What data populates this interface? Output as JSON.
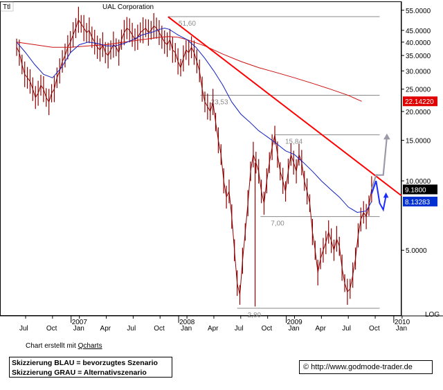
{
  "chart_data": {
    "type": "line",
    "title": "UAL Corporation",
    "scale": "log",
    "scale_label": "LOG",
    "ylim": [
      2.2,
      60
    ],
    "y_ticks": [
      {
        "value": 55,
        "label": "55.0000"
      },
      {
        "value": 45,
        "label": "45.0000"
      },
      {
        "value": 40,
        "label": "40.0000"
      },
      {
        "value": 35,
        "label": "35.0000"
      },
      {
        "value": 30,
        "label": "30.0000"
      },
      {
        "value": 25,
        "label": "25.0000"
      },
      {
        "value": 20,
        "label": "20.0000"
      },
      {
        "value": 15,
        "label": "15.0000"
      },
      {
        "value": 10,
        "label": "10.0000"
      },
      {
        "value": 5,
        "label": "5.0000"
      }
    ],
    "x_ticks": [
      {
        "month": 0,
        "label": "Jul"
      },
      {
        "month": 3,
        "label": "Oct"
      },
      {
        "month": 6,
        "label": "Jan",
        "year": "2007"
      },
      {
        "month": 9,
        "label": "Apr"
      },
      {
        "month": 12,
        "label": "Jul"
      },
      {
        "month": 15,
        "label": "Oct"
      },
      {
        "month": 18,
        "label": "Jan",
        "year": "2008"
      },
      {
        "month": 21,
        "label": "Apr"
      },
      {
        "month": 24,
        "label": "Jul"
      },
      {
        "month": 27,
        "label": "Oct"
      },
      {
        "month": 30,
        "label": "Jan",
        "year": "2009"
      },
      {
        "month": 33,
        "label": "Apr"
      },
      {
        "month": 36,
        "label": "Jul"
      },
      {
        "month": 39,
        "label": "Oct"
      },
      {
        "month": 42,
        "label": "Jan",
        "year": "2010"
      }
    ],
    "price_weekly": [
      [
        -1.0,
        38
      ],
      [
        -0.7,
        36
      ],
      [
        -0.4,
        32
      ],
      [
        -0.1,
        29
      ],
      [
        0.2,
        28
      ],
      [
        0.5,
        27
      ],
      [
        0.8,
        25
      ],
      [
        1.1,
        23
      ],
      [
        1.4,
        24
      ],
      [
        1.7,
        26
      ],
      [
        2.0,
        25
      ],
      [
        2.3,
        23
      ],
      [
        2.6,
        22
      ],
      [
        2.9,
        24
      ],
      [
        3.2,
        25
      ],
      [
        3.5,
        28
      ],
      [
        3.8,
        30
      ],
      [
        4.1,
        33
      ],
      [
        4.4,
        35
      ],
      [
        4.7,
        38
      ],
      [
        5.0,
        40
      ],
      [
        5.3,
        43
      ],
      [
        5.6,
        46
      ],
      [
        5.9,
        50
      ],
      [
        6.2,
        48
      ],
      [
        6.5,
        46
      ],
      [
        6.8,
        44
      ],
      [
        7.1,
        45
      ],
      [
        7.4,
        42
      ],
      [
        7.7,
        40
      ],
      [
        8.0,
        38
      ],
      [
        8.3,
        37
      ],
      [
        8.6,
        39
      ],
      [
        8.9,
        36
      ],
      [
        9.2,
        35
      ],
      [
        9.5,
        37
      ],
      [
        9.8,
        39
      ],
      [
        10.1,
        38
      ],
      [
        10.4,
        36
      ],
      [
        10.7,
        41
      ],
      [
        11.0,
        44
      ],
      [
        11.3,
        46
      ],
      [
        11.6,
        45
      ],
      [
        11.9,
        43
      ],
      [
        12.2,
        41
      ],
      [
        12.5,
        42
      ],
      [
        12.8,
        44
      ],
      [
        13.1,
        45
      ],
      [
        13.4,
        46
      ],
      [
        13.7,
        44
      ],
      [
        14.0,
        45
      ],
      [
        14.3,
        47
      ],
      [
        14.6,
        46
      ],
      [
        14.9,
        44
      ],
      [
        15.2,
        42
      ],
      [
        15.5,
        40
      ],
      [
        15.8,
        39
      ],
      [
        16.1,
        41
      ],
      [
        16.4,
        37
      ],
      [
        16.7,
        36
      ],
      [
        17.0,
        33
      ],
      [
        17.3,
        31
      ],
      [
        17.6,
        34
      ],
      [
        17.9,
        37
      ],
      [
        18.2,
        36
      ],
      [
        18.5,
        38
      ],
      [
        18.8,
        36
      ],
      [
        19.1,
        33
      ],
      [
        19.4,
        30
      ],
      [
        19.7,
        25
      ],
      [
        20.0,
        22
      ],
      [
        20.3,
        21
      ],
      [
        20.6,
        20
      ],
      [
        20.9,
        22
      ],
      [
        21.2,
        18
      ],
      [
        21.5,
        15
      ],
      [
        21.8,
        13
      ],
      [
        22.1,
        10
      ],
      [
        22.4,
        8.5
      ],
      [
        22.7,
        9
      ],
      [
        23.0,
        7
      ],
      [
        23.3,
        5
      ],
      [
        23.6,
        3.6
      ],
      [
        23.9,
        3.2
      ],
      [
        24.2,
        4.5
      ],
      [
        24.5,
        6
      ],
      [
        24.8,
        8
      ],
      [
        25.1,
        11
      ],
      [
        25.4,
        13
      ],
      [
        25.7,
        12
      ],
      [
        26.0,
        11
      ],
      [
        26.3,
        9
      ],
      [
        26.6,
        8
      ],
      [
        26.9,
        10
      ],
      [
        27.2,
        12
      ],
      [
        27.5,
        14
      ],
      [
        27.8,
        15.8
      ],
      [
        28.1,
        13
      ],
      [
        28.4,
        11
      ],
      [
        28.7,
        10
      ],
      [
        29.0,
        9
      ],
      [
        29.3,
        11
      ],
      [
        29.6,
        13
      ],
      [
        29.9,
        12
      ],
      [
        30.2,
        11
      ],
      [
        30.5,
        13
      ],
      [
        30.8,
        12
      ],
      [
        31.1,
        10
      ],
      [
        31.4,
        9
      ],
      [
        31.7,
        8
      ],
      [
        32.0,
        6
      ],
      [
        32.3,
        5
      ],
      [
        32.6,
        4
      ],
      [
        32.9,
        4.6
      ],
      [
        33.2,
        5
      ],
      [
        33.5,
        5.4
      ],
      [
        33.8,
        6
      ],
      [
        34.1,
        5.5
      ],
      [
        34.4,
        5
      ],
      [
        34.7,
        5.6
      ],
      [
        35.0,
        5.2
      ],
      [
        35.3,
        4.2
      ],
      [
        35.6,
        3.6
      ],
      [
        35.9,
        3.3
      ],
      [
        36.2,
        3.4
      ],
      [
        36.5,
        3.9
      ],
      [
        36.8,
        4.6
      ],
      [
        37.1,
        5.8
      ],
      [
        37.4,
        6.8
      ],
      [
        37.7,
        7.3
      ],
      [
        38.0,
        7.0
      ],
      [
        38.3,
        7.8
      ],
      [
        38.6,
        9.2
      ]
    ],
    "sma_blue": [
      [
        -1.0,
        40
      ],
      [
        0.0,
        36
      ],
      [
        1.0,
        32
      ],
      [
        2.0,
        29
      ],
      [
        3.0,
        28
      ],
      [
        4.0,
        31
      ],
      [
        5.0,
        36
      ],
      [
        6.0,
        39
      ],
      [
        7.0,
        40
      ],
      [
        8.0,
        39.5
      ],
      [
        9.0,
        38.5
      ],
      [
        10.0,
        38.5
      ],
      [
        11.0,
        39.5
      ],
      [
        12.0,
        41
      ],
      [
        13.0,
        43
      ],
      [
        14.0,
        44
      ],
      [
        15.0,
        45.5
      ],
      [
        15.5,
        46
      ],
      [
        16.0,
        45.5
      ],
      [
        17.0,
        43
      ],
      [
        18.0,
        41
      ],
      [
        19.0,
        38
      ],
      [
        20.0,
        34
      ],
      [
        21.0,
        30
      ],
      [
        22.0,
        26
      ],
      [
        23.0,
        22
      ],
      [
        24.0,
        19.5
      ],
      [
        25.0,
        18
      ],
      [
        26.0,
        16.5
      ],
      [
        27.0,
        15.5
      ],
      [
        28.0,
        14.5
      ],
      [
        29.0,
        13.5
      ],
      [
        30.0,
        13
      ],
      [
        31.0,
        12
      ],
      [
        32.0,
        11
      ],
      [
        33.0,
        10
      ],
      [
        34.0,
        9.2
      ],
      [
        35.0,
        8.5
      ],
      [
        36.0,
        7.7
      ],
      [
        37.0,
        7.3
      ],
      [
        38.0,
        7.4
      ],
      [
        38.6,
        8.13
      ]
    ],
    "sma_red": [
      [
        -1.0,
        40
      ],
      [
        1.0,
        39
      ],
      [
        3.0,
        38
      ],
      [
        5.0,
        38
      ],
      [
        7.0,
        38.5
      ],
      [
        9.0,
        39
      ],
      [
        11.0,
        40
      ],
      [
        13.0,
        41
      ],
      [
        15.0,
        42
      ],
      [
        16.0,
        42.3
      ],
      [
        17.0,
        42
      ],
      [
        18.0,
        41
      ],
      [
        20.0,
        38.5
      ],
      [
        22.0,
        35.5
      ],
      [
        24.0,
        33
      ],
      [
        26.0,
        31
      ],
      [
        28.0,
        29.5
      ],
      [
        30.0,
        28
      ],
      [
        32.0,
        26.5
      ],
      [
        34.0,
        25
      ],
      [
        36.0,
        23.5
      ],
      [
        37.5,
        22.14
      ]
    ],
    "trendline": {
      "from": [
        15.9,
        51.5
      ],
      "to": [
        39.4,
        9.5
      ]
    },
    "horizontal_levels": [
      {
        "value": 51.6,
        "label": "51,60",
        "from": 15.9,
        "to": 39.5
      },
      {
        "value": 23.53,
        "label": "23,53",
        "from": 19.5,
        "to": 39.5
      },
      {
        "value": 15.84,
        "label": "15,84",
        "from": 27.8,
        "to": 39.5
      },
      {
        "value": 7.0,
        "label": "7,00",
        "from": 26.2,
        "to": 39.5
      },
      {
        "value": 2.8,
        "label": "2,80",
        "from": 23.6,
        "to": 39.5
      }
    ],
    "price_tags": [
      {
        "value": 22.1422,
        "label": "22.14220",
        "color": "#e00000"
      },
      {
        "value": 9.18,
        "label": "9.1800",
        "color": "#000000"
      },
      {
        "value": 8.13283,
        "label": "8.13283",
        "color": "#0030d0"
      }
    ],
    "scenario_blue": [
      [
        38.6,
        8.8
      ],
      [
        39.1,
        10.0
      ],
      [
        39.5,
        8.0
      ],
      [
        39.9,
        7.5
      ],
      [
        40.2,
        8.6
      ]
    ],
    "scenario_gray": [
      [
        38.6,
        9.2
      ],
      [
        39.1,
        10.6
      ],
      [
        39.9,
        10.6
      ],
      [
        40.3,
        15.5
      ]
    ],
    "colors": {
      "price": "#8b0000",
      "sma_blue": "#1020c0",
      "sma_red": "#cc1010",
      "trend": "#ff0000",
      "scenario_blue": "#1a2cff",
      "scenario_gray": "#9a9aa8",
      "level": "#8a8a8a"
    }
  },
  "header_tag": "Ttl",
  "credit": {
    "text": "Chart erstellt mit ",
    "link": "Qcharts"
  },
  "legend": {
    "line1": "Skizzierung BLAU = bevorzugtes Szenario",
    "line2": "Skizzierung GRAU = Alternativszenario"
  },
  "source": "© http://www.godmode-trader.de"
}
